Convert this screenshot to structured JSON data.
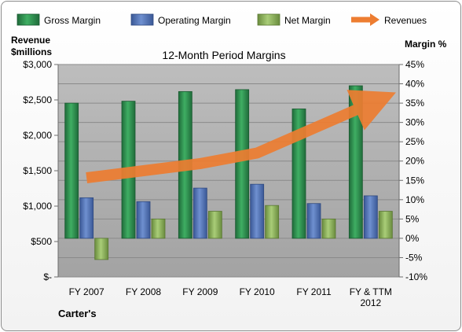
{
  "chart_data": {
    "type": "bar",
    "title": "12-Month Period Margins",
    "left_axis_header": [
      "Revenue",
      "$millions"
    ],
    "right_axis_header": "Margin %",
    "brand": "Carter's",
    "categories": [
      [
        "FY 2007"
      ],
      [
        "FY 2008"
      ],
      [
        "FY 2009"
      ],
      [
        "FY 2010"
      ],
      [
        "FY 2011"
      ],
      [
        "FY & TTM",
        "2012"
      ]
    ],
    "left_ticks": [
      "$-",
      "$500",
      "$1,000",
      "$1,500",
      "$2,000",
      "$2,500",
      "$3,000"
    ],
    "right_ticks": [
      "-10%",
      "-5%",
      "0%",
      "5%",
      "10%",
      "15%",
      "20%",
      "25%",
      "30%",
      "35%",
      "40%",
      "45%"
    ],
    "left_range": [
      0,
      3000
    ],
    "right_range": [
      -10,
      45
    ],
    "series": [
      {
        "name": "Gross Margin",
        "axis": "right",
        "values": [
          35.0,
          35.5,
          38.0,
          38.5,
          33.5,
          39.5
        ],
        "color": "#2e8b4e"
      },
      {
        "name": "Operating Margin",
        "axis": "right",
        "values": [
          10.5,
          9.5,
          13.0,
          14.0,
          9.0,
          11.0
        ],
        "color": "#4f72b8"
      },
      {
        "name": "Net Margin",
        "axis": "right",
        "values": [
          -5.5,
          5.0,
          7.0,
          8.5,
          5.0,
          7.0
        ],
        "color": "#8db55a"
      },
      {
        "name": "Revenues",
        "axis": "left",
        "type": "line",
        "values": [
          1400,
          1500,
          1600,
          1750,
          2100,
          2450
        ],
        "color": "#ed7d31"
      }
    ],
    "grid": true,
    "legend_position": "top"
  }
}
